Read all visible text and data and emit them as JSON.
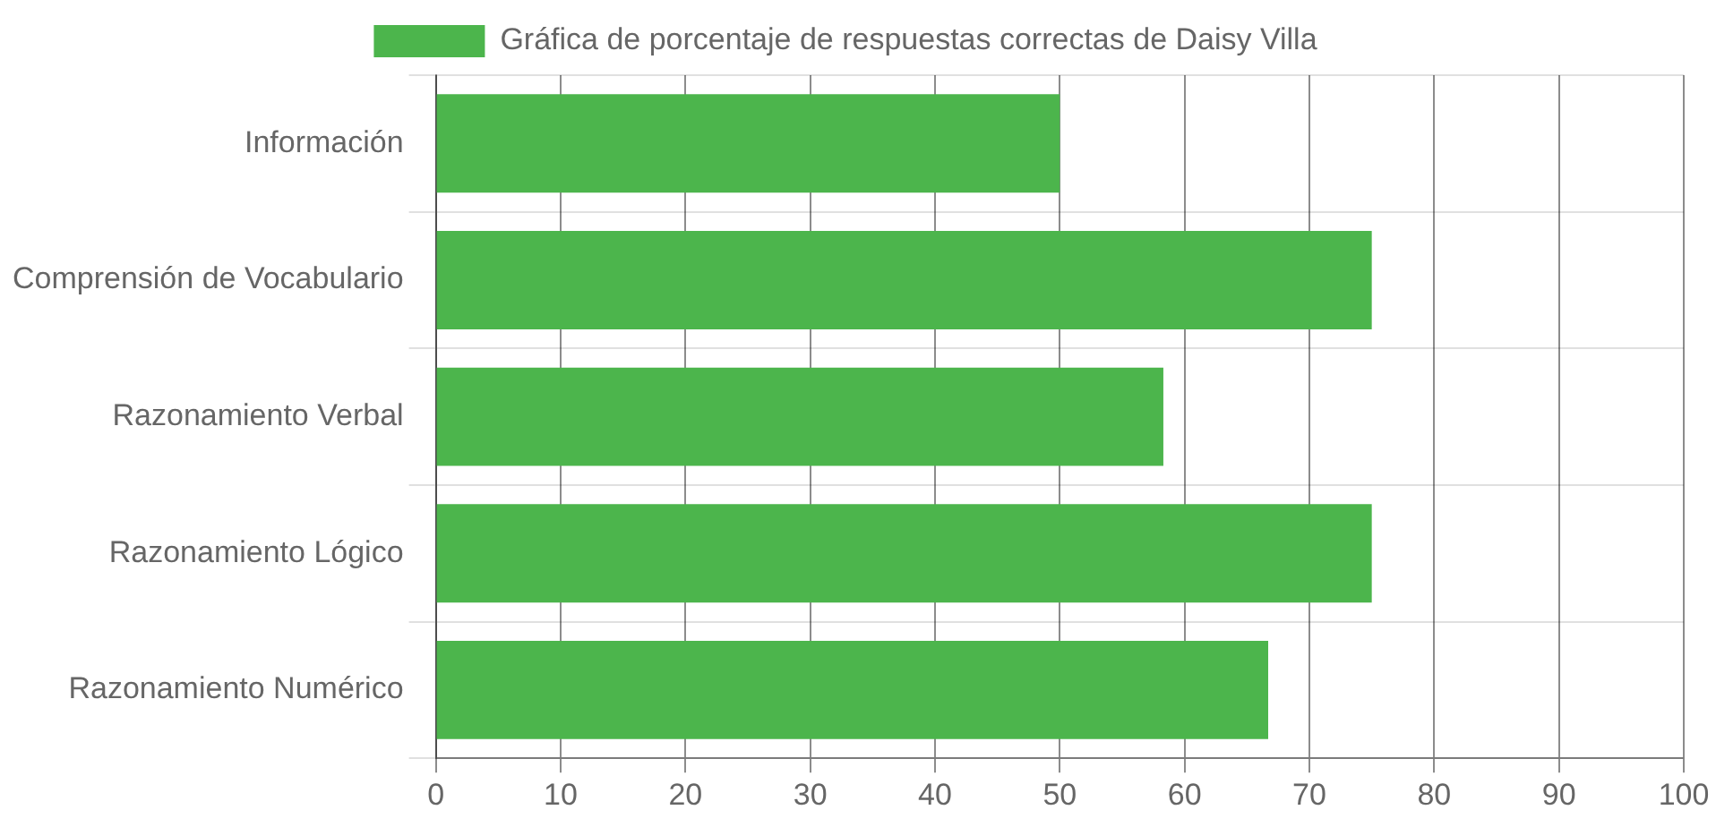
{
  "chart_data": {
    "type": "bar",
    "orientation": "horizontal",
    "categories": [
      "Información",
      "Comprensión de Vocabulario",
      "Razonamiento Verbal",
      "Razonamiento Lógico",
      "Razonamiento Numérico"
    ],
    "series": [
      {
        "name": "Gráfica de porcentaje de respuestas correctas de Daisy Villa",
        "color": "#4cb54c",
        "values": [
          50,
          75,
          58.3,
          75,
          66.7
        ]
      }
    ],
    "xlim": [
      0,
      100
    ],
    "xticks": [
      0,
      10,
      20,
      30,
      40,
      50,
      60,
      70,
      80,
      90,
      100
    ],
    "grid": true,
    "legend": "top"
  }
}
